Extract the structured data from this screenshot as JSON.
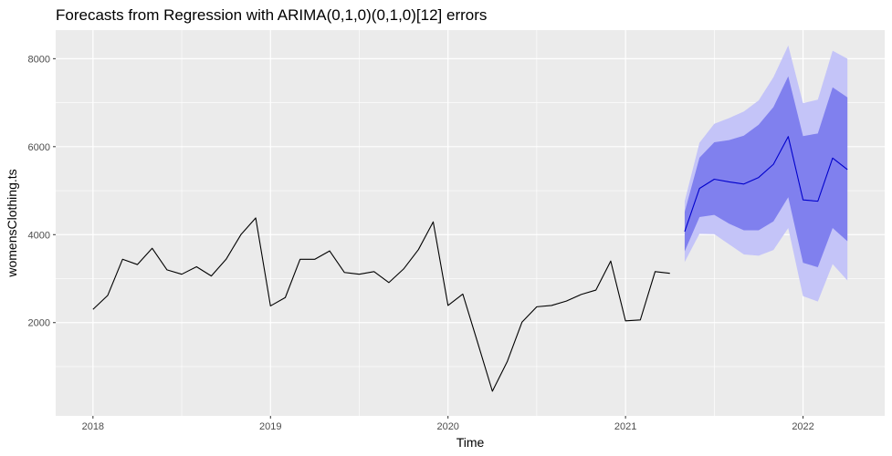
{
  "chart_data": {
    "type": "line",
    "title": "Forecasts from Regression with ARIMA(0,1,0)(0,1,0)[12] errors",
    "xlabel": "Time",
    "ylabel": "womensClothing.ts",
    "xlim": [
      2017.79,
      2022.46
    ],
    "ylim": [
      -120,
      8650
    ],
    "x_ticks": [
      2018,
      2019,
      2020,
      2021,
      2022
    ],
    "x_tick_labels": [
      "2018",
      "2019",
      "2020",
      "2021",
      "2022"
    ],
    "y_ticks": [
      2000,
      4000,
      6000,
      8000
    ],
    "y_tick_labels": [
      "2000",
      "4000",
      "6000",
      "8000"
    ],
    "grid": true,
    "colors": {
      "panel_bg": "#ebebeb",
      "grid": "#ffffff",
      "observed": "#000000",
      "forecast": "#0000cc",
      "pi80": "#8080ee",
      "pi95": "#c4c4f8"
    },
    "series": [
      {
        "kind": "observed",
        "start": 2018.0,
        "step": 0.08333333,
        "values": [
          2300,
          2620,
          3440,
          3320,
          3690,
          3200,
          3100,
          3270,
          3060,
          3440,
          4000,
          4380,
          2380,
          2570,
          3440,
          3440,
          3630,
          3140,
          3100,
          3160,
          2910,
          3220,
          3660,
          4290,
          2390,
          2650,
          1550,
          440,
          1110,
          2010,
          2360,
          2390,
          2490,
          2640,
          2740,
          3400,
          2040,
          2060,
          3160,
          3120
        ]
      },
      {
        "kind": "forecast",
        "start": 2021.33333333,
        "step": 0.08333333,
        "values": [
          4070,
          5050,
          5260,
          5200,
          5150,
          5300,
          5600,
          6230,
          4790,
          4760,
          5740,
          5480
        ],
        "lo80": [
          3620,
          4400,
          4450,
          4250,
          4100,
          4100,
          4300,
          4850,
          3360,
          3260,
          4150,
          3850
        ],
        "hi80": [
          4520,
          5750,
          6100,
          6150,
          6250,
          6500,
          6900,
          7600,
          6240,
          6300,
          7350,
          7120
        ],
        "lo95": [
          3380,
          4020,
          4010,
          3780,
          3550,
          3520,
          3650,
          4150,
          2600,
          2480,
          3330,
          2960
        ],
        "hi95": [
          4760,
          6090,
          6520,
          6650,
          6800,
          7050,
          7580,
          8300,
          6990,
          7070,
          8180,
          8000
        ]
      }
    ]
  }
}
